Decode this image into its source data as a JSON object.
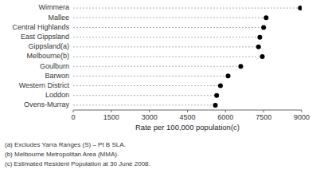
{
  "chart_data": {
    "type": "dot",
    "orientation": "horizontal",
    "categories": [
      "Wimmera",
      "Mallee",
      "Central Highlands",
      "East Gippsland",
      "Gippsland(a)",
      "Melbourne(b)",
      "Goulburn",
      "Barwon",
      "Western District",
      "Loddon",
      "Ovens-Murray"
    ],
    "values": [
      8950,
      7600,
      7500,
      7350,
      7300,
      7450,
      6600,
      6100,
      5800,
      5650,
      5600
    ],
    "color": "#000000",
    "xlabel": "Rate per 100,000 population(c)",
    "xlim": [
      0,
      9000
    ],
    "xticks": [
      0,
      1500,
      3000,
      4500,
      6000,
      7500,
      9000
    ],
    "annotations": [
      "(a) Excludes Yarra Ranges (S) – Pt B SLA.",
      "(b) Melbourne Metropolitan Area (MMA).",
      "(c) Estimated Resident Population at 30 June 2008."
    ]
  }
}
